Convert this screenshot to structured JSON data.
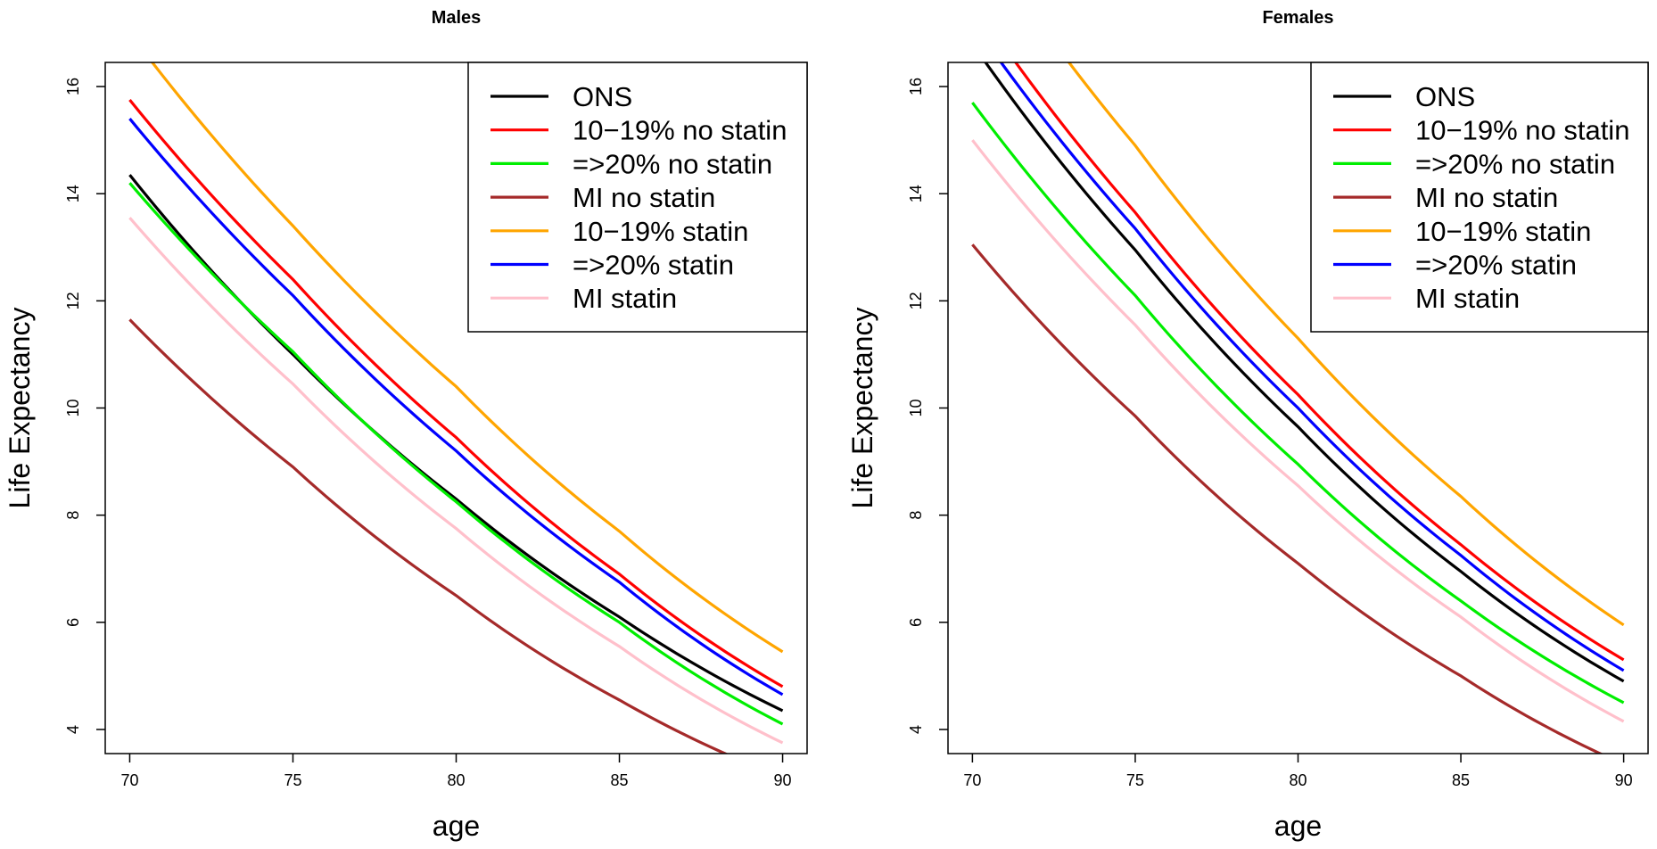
{
  "chart_data": [
    {
      "type": "line",
      "title": "Males",
      "xlabel": "age",
      "ylabel": "Life Expectancy",
      "xlim": [
        69.25,
        90.75
      ],
      "ylim": [
        3.55,
        16.45
      ],
      "xticks": [
        70,
        75,
        80,
        85,
        90
      ],
      "yticks": [
        4,
        6,
        8,
        10,
        12,
        14,
        16
      ],
      "x": [
        70,
        75,
        80,
        85,
        90
      ],
      "legend_position": "top-right",
      "grid": false,
      "series": [
        {
          "name": "ONS",
          "color": "#000000",
          "values": [
            14.35,
            11.0,
            8.3,
            6.1,
            4.35
          ]
        },
        {
          "name": "10−19% no statin",
          "color": "#ff0000",
          "values": [
            15.75,
            12.4,
            9.45,
            6.9,
            4.8
          ]
        },
        {
          "name": "=>20% no statin",
          "color": "#00ee00",
          "values": [
            14.2,
            11.05,
            8.25,
            6.0,
            4.1
          ]
        },
        {
          "name": "MI no statin",
          "color": "#a52a2a",
          "values": [
            11.65,
            8.9,
            6.5,
            4.55,
            3.1
          ]
        },
        {
          "name": "10−19%  statin",
          "color": "#ffa500",
          "values": [
            17.0,
            13.4,
            10.4,
            7.7,
            5.45
          ]
        },
        {
          "name": "=>20% statin",
          "color": "#0000ff",
          "values": [
            15.4,
            12.1,
            9.2,
            6.75,
            4.65
          ]
        },
        {
          "name": "MI statin",
          "color": "#ffc0cb",
          "values": [
            13.55,
            10.45,
            7.75,
            5.55,
            3.75
          ]
        }
      ]
    },
    {
      "type": "line",
      "title": "Females",
      "xlabel": "age",
      "ylabel": "Life Expectancy",
      "xlim": [
        69.25,
        90.75
      ],
      "ylim": [
        3.55,
        16.45
      ],
      "xticks": [
        70,
        75,
        80,
        85,
        90
      ],
      "yticks": [
        4,
        6,
        8,
        10,
        12,
        14,
        16
      ],
      "x": [
        70,
        75,
        80,
        85,
        90
      ],
      "legend_position": "top-right",
      "grid": false,
      "series": [
        {
          "name": "ONS",
          "color": "#000000",
          "values": [
            16.8,
            12.95,
            9.65,
            6.95,
            4.9
          ]
        },
        {
          "name": "10−19% no statin",
          "color": "#ff0000",
          "values": [
            17.6,
            13.65,
            10.25,
            7.45,
            5.3
          ]
        },
        {
          "name": "=>20% no statin",
          "color": "#00ee00",
          "values": [
            15.7,
            12.1,
            8.95,
            6.4,
            4.5
          ]
        },
        {
          "name": "MI no statin",
          "color": "#a52a2a",
          "values": [
            13.05,
            9.85,
            7.1,
            5.0,
            3.35
          ]
        },
        {
          "name": "10−19%  statin",
          "color": "#ffa500",
          "values": [
            19.0,
            14.9,
            11.3,
            8.35,
            5.95
          ]
        },
        {
          "name": "=>20% statin",
          "color": "#0000ff",
          "values": [
            17.2,
            13.35,
            10.0,
            7.25,
            5.1
          ]
        },
        {
          "name": "MI statin",
          "color": "#ffc0cb",
          "values": [
            15.0,
            11.55,
            8.55,
            6.1,
            4.15
          ]
        }
      ]
    }
  ]
}
